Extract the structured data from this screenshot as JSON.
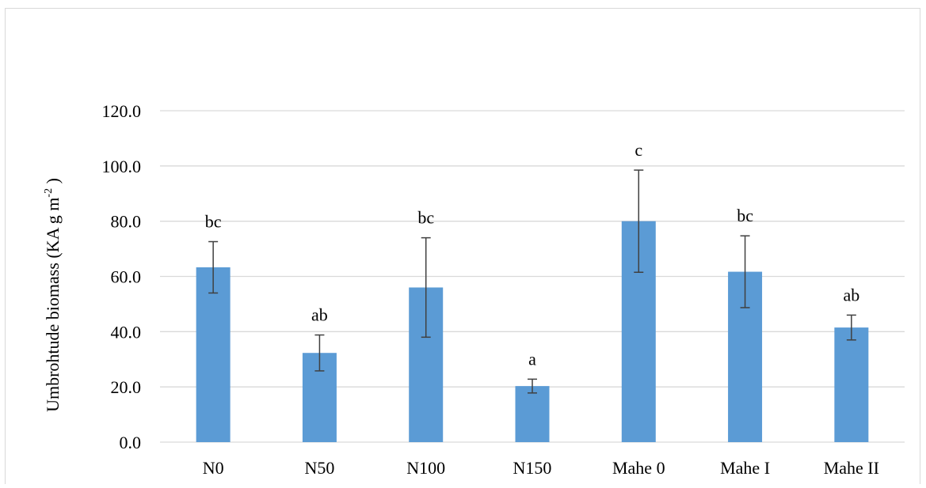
{
  "chart_data": {
    "type": "bar",
    "title": "",
    "xlabel": "",
    "ylabel": {
      "main": "Umbrohtude biomass (KA g m",
      "superscript": "-2",
      "close": " )"
    },
    "ylim": [
      0,
      120
    ],
    "yticks": [
      "0.0",
      "20.0",
      "40.0",
      "60.0",
      "80.0",
      "100.0",
      "120.0"
    ],
    "ytick_values": [
      0,
      20,
      40,
      60,
      80,
      100,
      120
    ],
    "grid": true,
    "bar_color": "#5b9bd5",
    "grid_color": "#d9d9d9",
    "errorbar_color": "#404040",
    "categories": [
      "N0",
      "N50",
      "N100",
      "N150",
      "Mahe 0",
      "Mahe I",
      "Mahe II"
    ],
    "values": [
      63.3,
      32.3,
      56.0,
      20.3,
      80.0,
      61.7,
      41.5
    ],
    "errors": [
      9.3,
      6.5,
      18.0,
      2.5,
      18.5,
      13.0,
      4.5
    ],
    "significance_labels": [
      "bc",
      "ab",
      "bc",
      "a",
      "c",
      "bc",
      "ab"
    ]
  }
}
